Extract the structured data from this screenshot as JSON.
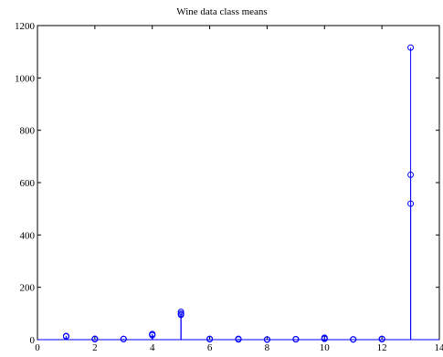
{
  "chart_data": {
    "type": "scatter",
    "style": "stem",
    "title": "Wine data class means",
    "xlabel": "",
    "ylabel": "",
    "xlim": [
      0,
      14
    ],
    "ylim": [
      0,
      1200
    ],
    "xticks": [
      0,
      2,
      4,
      6,
      8,
      10,
      12,
      14
    ],
    "yticks": [
      0,
      200,
      400,
      600,
      800,
      1000,
      1200
    ],
    "grid": false,
    "color": "#0000ff",
    "series": [
      {
        "values": [
          13.74,
          2.01,
          2.46,
          17.04,
          106.34,
          2.84,
          2.98,
          0.29,
          1.9,
          5.53,
          1.06,
          3.16,
          1115.71
        ]
      },
      {
        "values": [
          12.28,
          1.93,
          2.24,
          20.24,
          94.55,
          2.26,
          2.08,
          0.36,
          1.63,
          3.09,
          1.06,
          2.79,
          519.51
        ]
      },
      {
        "values": [
          13.15,
          3.33,
          2.44,
          21.42,
          99.31,
          1.68,
          0.78,
          0.45,
          1.15,
          7.4,
          0.68,
          1.68,
          629.9
        ]
      }
    ],
    "x": [
      1,
      2,
      3,
      4,
      5,
      6,
      7,
      8,
      9,
      10,
      11,
      12,
      13
    ]
  }
}
